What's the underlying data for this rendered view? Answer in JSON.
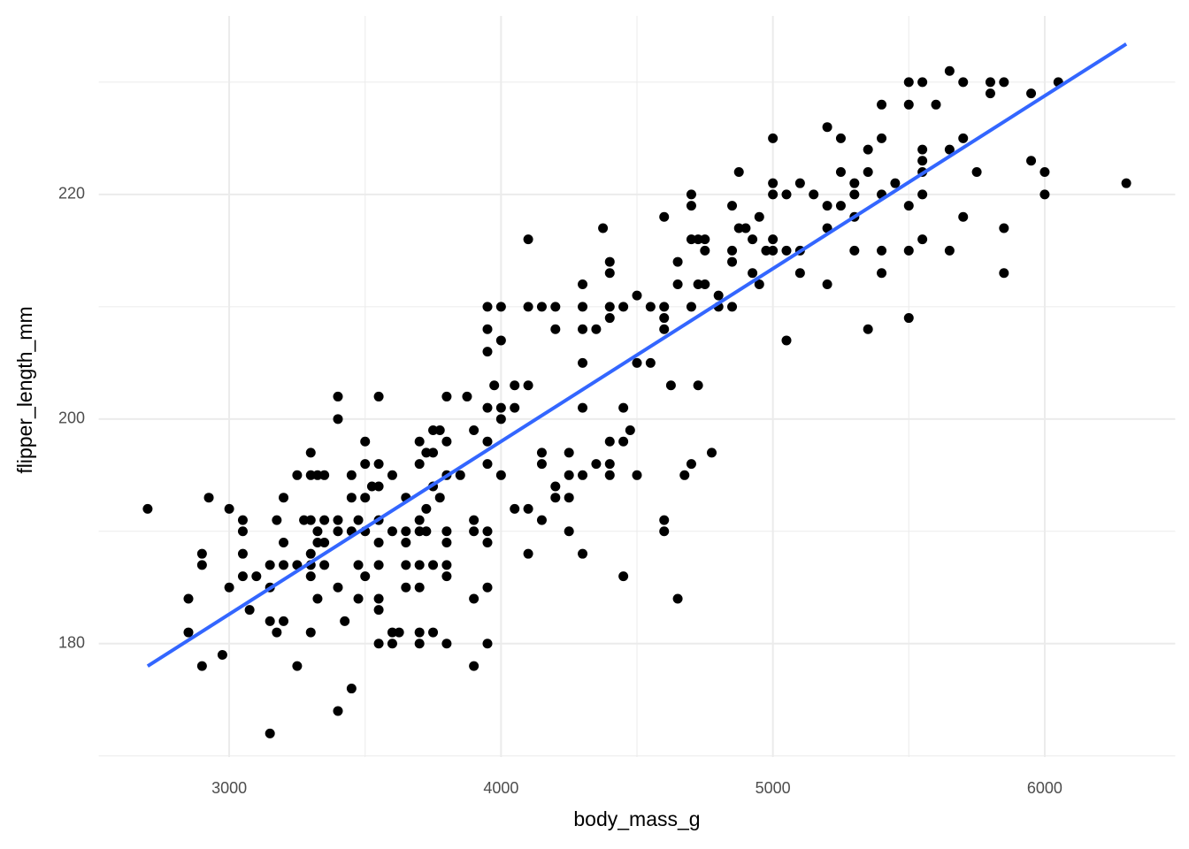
{
  "chart_data": {
    "type": "scatter",
    "x_label": "body_mass_g",
    "y_label": "flipper_length_mm",
    "xlim": [
      2520,
      6480
    ],
    "ylim": [
      169.9,
      235.9
    ],
    "xticks": [
      3000,
      4000,
      5000,
      6000
    ],
    "yticks": [
      180,
      200,
      220
    ],
    "x_minor_ticks": [
      3500,
      4500,
      5500
    ],
    "y_minor_ticks": [
      170,
      190,
      210,
      230
    ],
    "grid": true,
    "color": "#000000",
    "x": [
      2700,
      2850,
      2850,
      2900,
      2900,
      2900,
      2925,
      2975,
      3000,
      3000,
      3050,
      3050,
      3050,
      3050,
      3075,
      3100,
      3150,
      3150,
      3150,
      3150,
      3175,
      3175,
      3200,
      3200,
      3200,
      3200,
      3250,
      3250,
      3250,
      3275,
      3300,
      3300,
      3300,
      3300,
      3300,
      3300,
      3300,
      3325,
      3325,
      3325,
      3325,
      3350,
      3350,
      3350,
      3350,
      3400,
      3400,
      3400,
      3400,
      3400,
      3400,
      3425,
      3450,
      3450,
      3450,
      3450,
      3475,
      3475,
      3475,
      3500,
      3500,
      3500,
      3500,
      3500,
      3525,
      3550,
      3550,
      3550,
      3550,
      3550,
      3550,
      3550,
      3550,
      3550,
      3600,
      3600,
      3600,
      3600,
      3625,
      3650,
      3650,
      3650,
      3650,
      3650,
      3700,
      3700,
      3700,
      3700,
      3700,
      3700,
      3700,
      3700,
      3725,
      3725,
      3725,
      3750,
      3750,
      3750,
      3750,
      3750,
      3775,
      3775,
      3800,
      3800,
      3800,
      3800,
      3800,
      3800,
      3800,
      3800,
      3850,
      3875,
      3900,
      3900,
      3900,
      3900,
      3900,
      3950,
      3950,
      3950,
      3950,
      3950,
      3950,
      3950,
      3950,
      3950,
      3950,
      3975,
      4000,
      4000,
      4000,
      4000,
      4000,
      4050,
      4050,
      4050,
      4100,
      4100,
      4100,
      4100,
      4100,
      4150,
      4150,
      4150,
      4150,
      4200,
      4200,
      4200,
      4200,
      4250,
      4250,
      4250,
      4250,
      4300,
      4300,
      4300,
      4300,
      4300,
      4300,
      4300,
      4350,
      4350,
      4375,
      4400,
      4400,
      4400,
      4400,
      4400,
      4400,
      4400,
      4450,
      4450,
      4450,
      4450,
      4475,
      4500,
      4500,
      4500,
      4550,
      4550,
      4600,
      4600,
      4600,
      4600,
      4600,
      4600,
      4625,
      4650,
      4650,
      4650,
      4675,
      4700,
      4700,
      4700,
      4700,
      4700,
      4725,
      4725,
      4725,
      4750,
      4750,
      4750,
      4775,
      4800,
      4800,
      4850,
      4850,
      4850,
      4850,
      4875,
      4875,
      4900,
      4925,
      4925,
      4950,
      4950,
      4975,
      5000,
      5000,
      5000,
      5000,
      5000,
      5050,
      5050,
      5050,
      5100,
      5100,
      5100,
      5150,
      5200,
      5200,
      5200,
      5200,
      5250,
      5250,
      5250,
      5300,
      5300,
      5300,
      5300,
      5350,
      5350,
      5350,
      5400,
      5400,
      5400,
      5400,
      5400,
      5450,
      5500,
      5500,
      5500,
      5500,
      5500,
      5550,
      5550,
      5550,
      5550,
      5550,
      5550,
      5600,
      5650,
      5650,
      5650,
      5700,
      5700,
      5700,
      5750,
      5800,
      5800,
      5850,
      5850,
      5850,
      5950,
      5950,
      6000,
      6000,
      6050,
      6300
    ],
    "values": [
      192,
      184,
      181,
      188,
      187,
      178,
      193,
      179,
      192,
      185,
      191,
      190,
      188,
      186,
      183,
      186,
      187,
      185,
      182,
      172,
      191,
      181,
      193,
      189,
      187,
      182,
      195,
      187,
      178,
      191,
      197,
      195,
      191,
      188,
      187,
      186,
      181,
      195,
      190,
      189,
      184,
      195,
      191,
      189,
      187,
      202,
      200,
      191,
      190,
      185,
      174,
      182,
      195,
      193,
      190,
      176,
      191,
      187,
      184,
      198,
      196,
      193,
      190,
      186,
      194,
      202,
      196,
      194,
      191,
      189,
      187,
      184,
      183,
      180,
      195,
      190,
      181,
      180,
      181,
      193,
      190,
      187,
      185,
      189,
      196,
      198,
      191,
      190,
      187,
      185,
      181,
      180,
      197,
      192,
      190,
      199,
      197,
      194,
      187,
      181,
      199,
      193,
      202,
      198,
      195,
      190,
      187,
      186,
      180,
      189,
      195,
      202,
      199,
      191,
      190,
      184,
      178,
      210,
      208,
      206,
      201,
      198,
      196,
      190,
      189,
      185,
      180,
      203,
      200,
      210,
      207,
      201,
      195,
      203,
      201,
      192,
      216,
      210,
      203,
      192,
      188,
      210,
      197,
      196,
      191,
      210,
      208,
      194,
      193,
      197,
      195,
      193,
      190,
      212,
      210,
      208,
      205,
      201,
      195,
      188,
      208,
      196,
      217,
      214,
      213,
      210,
      209,
      198,
      196,
      195,
      210,
      201,
      198,
      186,
      199,
      211,
      205,
      195,
      210,
      205,
      218,
      210,
      209,
      208,
      191,
      190,
      203,
      212,
      214,
      184,
      195,
      220,
      219,
      216,
      210,
      196,
      216,
      212,
      203,
      216,
      215,
      212,
      197,
      211,
      210,
      219,
      215,
      214,
      210,
      222,
      217,
      217,
      216,
      213,
      218,
      212,
      215,
      225,
      221,
      220,
      216,
      215,
      220,
      215,
      207,
      221,
      215,
      213,
      220,
      226,
      219,
      217,
      212,
      225,
      222,
      219,
      221,
      220,
      218,
      215,
      224,
      222,
      208,
      228,
      225,
      220,
      215,
      213,
      221,
      230,
      228,
      219,
      215,
      209,
      230,
      224,
      223,
      222,
      220,
      216,
      228,
      231,
      224,
      215,
      230,
      225,
      218,
      222,
      230,
      229,
      230,
      217,
      213,
      229,
      223,
      222,
      220,
      230,
      221
    ],
    "fit": {
      "color": "#3366FF",
      "x": [
        2700,
        6300
      ],
      "values": [
        178.0,
        233.4
      ]
    }
  }
}
